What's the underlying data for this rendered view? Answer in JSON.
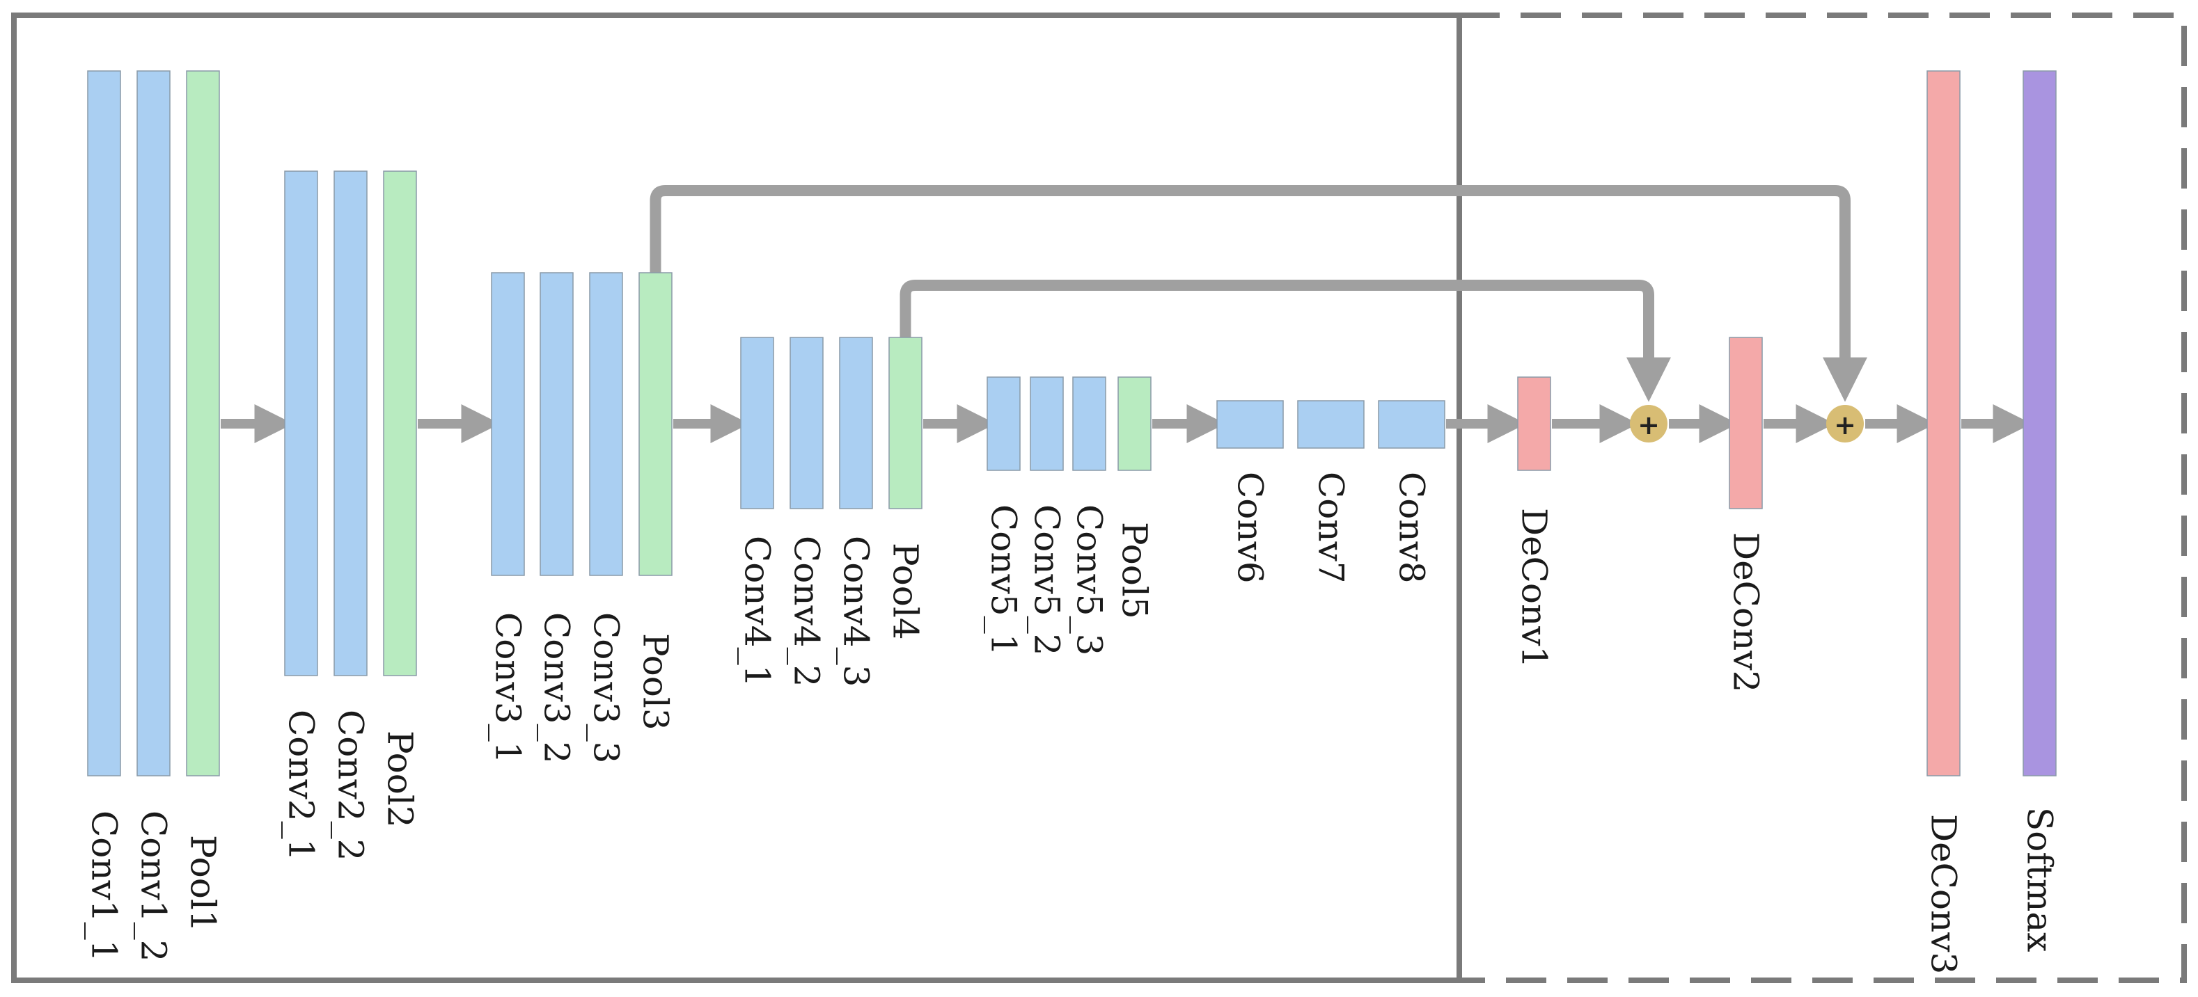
{
  "colors": {
    "conv": "#aacff2",
    "pool": "#b8ebc0",
    "deconv": "#f4a9a9",
    "softmax": "#a994e0",
    "sum_node": "#d8bd74",
    "arrow": "#a0a0a0",
    "frame": "#7a7a7a"
  },
  "sections": [
    {
      "name": "encoder-section",
      "style": "solid"
    },
    {
      "name": "decoder-section",
      "style": "dashed"
    }
  ],
  "layers": [
    {
      "id": "conv1_1",
      "label": "Conv1_1",
      "kind": "conv"
    },
    {
      "id": "conv1_2",
      "label": "Conv1_2",
      "kind": "conv"
    },
    {
      "id": "pool1",
      "label": "Pool1",
      "kind": "pool"
    },
    {
      "id": "conv2_1",
      "label": "Conv2_1",
      "kind": "conv"
    },
    {
      "id": "conv2_2",
      "label": "Conv2_2",
      "kind": "conv"
    },
    {
      "id": "pool2",
      "label": "Pool2",
      "kind": "pool"
    },
    {
      "id": "conv3_1",
      "label": "Conv3_1",
      "kind": "conv"
    },
    {
      "id": "conv3_2",
      "label": "Conv3_2",
      "kind": "conv"
    },
    {
      "id": "conv3_3",
      "label": "Conv3_3",
      "kind": "conv"
    },
    {
      "id": "pool3",
      "label": "Pool3",
      "kind": "pool"
    },
    {
      "id": "conv4_1",
      "label": "Conv4_1",
      "kind": "conv"
    },
    {
      "id": "conv4_2",
      "label": "Conv4_2",
      "kind": "conv"
    },
    {
      "id": "conv4_3",
      "label": "Conv4_3",
      "kind": "conv"
    },
    {
      "id": "pool4",
      "label": "Pool4",
      "kind": "pool"
    },
    {
      "id": "conv5_1",
      "label": "Conv5_1",
      "kind": "conv"
    },
    {
      "id": "conv5_2",
      "label": "Conv5_2",
      "kind": "conv"
    },
    {
      "id": "conv5_3",
      "label": "Conv5_3",
      "kind": "conv"
    },
    {
      "id": "pool5",
      "label": "Pool5",
      "kind": "pool"
    },
    {
      "id": "conv6",
      "label": "Conv6",
      "kind": "conv"
    },
    {
      "id": "conv7",
      "label": "Conv7",
      "kind": "conv"
    },
    {
      "id": "conv8",
      "label": "Conv8",
      "kind": "conv"
    },
    {
      "id": "deconv1",
      "label": "DeConv1",
      "kind": "deconv"
    },
    {
      "id": "deconv2",
      "label": "DeConv2",
      "kind": "deconv"
    },
    {
      "id": "deconv3",
      "label": "DeConv3",
      "kind": "deconv"
    },
    {
      "id": "softmax",
      "label": "Softmax",
      "kind": "softmax"
    }
  ],
  "sum_nodes": [
    {
      "id": "sum1",
      "symbol": "+"
    },
    {
      "id": "sum2",
      "symbol": "+"
    }
  ],
  "flow": [
    {
      "from": "pool1",
      "to": "conv2_1"
    },
    {
      "from": "pool2",
      "to": "conv3_1"
    },
    {
      "from": "pool3",
      "to": "conv4_1"
    },
    {
      "from": "pool4",
      "to": "conv5_1"
    },
    {
      "from": "pool5",
      "to": "conv6"
    },
    {
      "from": "conv8",
      "to": "deconv1"
    },
    {
      "from": "deconv1",
      "to": "sum1"
    },
    {
      "from": "sum1",
      "to": "deconv2"
    },
    {
      "from": "deconv2",
      "to": "sum2"
    },
    {
      "from": "sum2",
      "to": "deconv3"
    },
    {
      "from": "deconv3",
      "to": "softmax"
    }
  ],
  "skip_connections": [
    {
      "from": "pool3",
      "to": "sum2"
    },
    {
      "from": "pool4",
      "to": "sum1"
    }
  ]
}
